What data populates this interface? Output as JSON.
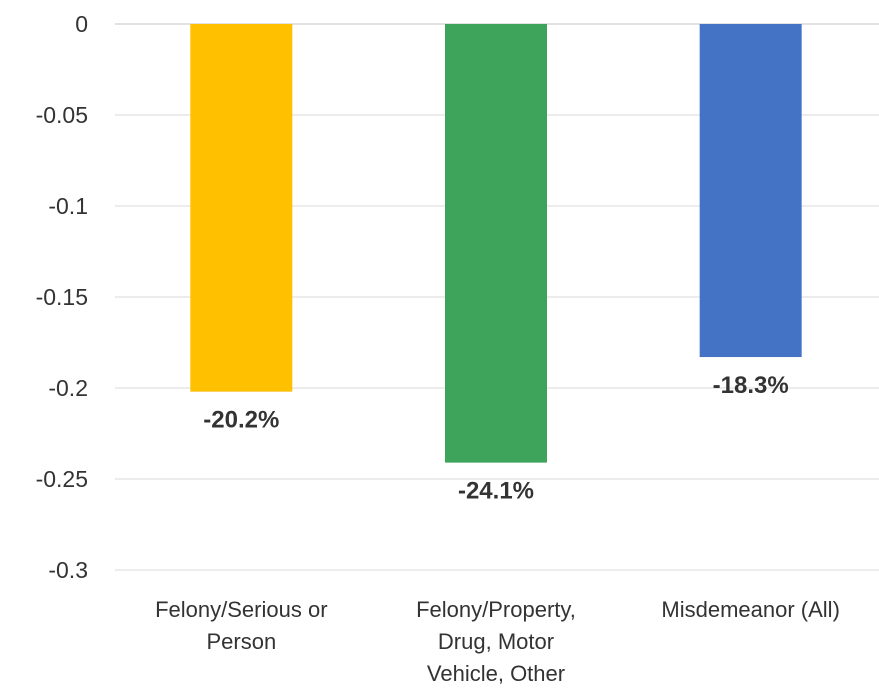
{
  "chart_data": {
    "type": "bar",
    "categories": [
      [
        "Felony/Serious or",
        "Person"
      ],
      [
        "Felony/Property,",
        "Drug, Motor",
        "Vehicle, Other"
      ],
      [
        "Misdemeanor (All)"
      ]
    ],
    "values": [
      -0.202,
      -0.241,
      -0.183
    ],
    "data_labels": [
      "-20.2%",
      "-24.1%",
      "-18.3%"
    ],
    "colors": [
      "#FFC000",
      "#3FA45B",
      "#4472C4"
    ],
    "y_ticks": [
      "0",
      "-0.05",
      "-0.1",
      "-0.15",
      "-0.2",
      "-0.25",
      "-0.3"
    ],
    "ylim": [
      -0.3,
      0
    ],
    "grid": true,
    "legend": "none",
    "title": "",
    "xlabel": "",
    "ylabel": ""
  }
}
